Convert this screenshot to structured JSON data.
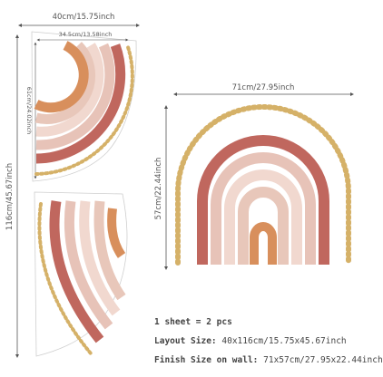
{
  "sheet_top": {
    "width_label": "40cm/15.75inch",
    "inner_width_label": "34.5cm/13.58inch",
    "inner_height_label": "61cm/24.02inch"
  },
  "sheet_side": {
    "height_label": "116cm/45.67inch"
  },
  "rainbow": {
    "width_label": "71cm/27.95inch",
    "height_label": "57cm/22.44inch"
  },
  "specs": {
    "sheet_count": "1 sheet = 2 pcs",
    "layout_label": "Layout Size:",
    "layout_value": "40x116cm/15.75x45.67inch",
    "finish_label": "Finish Size on wall:",
    "finish_value": "71x57cm/27.95x22.44inch"
  },
  "colors": {
    "outer_band": "#c0675e",
    "band_2": "#e7c3b8",
    "band_3": "#f1d8cf",
    "band_4": "#e8c7ba",
    "inner_band": "#d88f5c",
    "dots": "#d5b168",
    "dimension_line": "#555555"
  }
}
